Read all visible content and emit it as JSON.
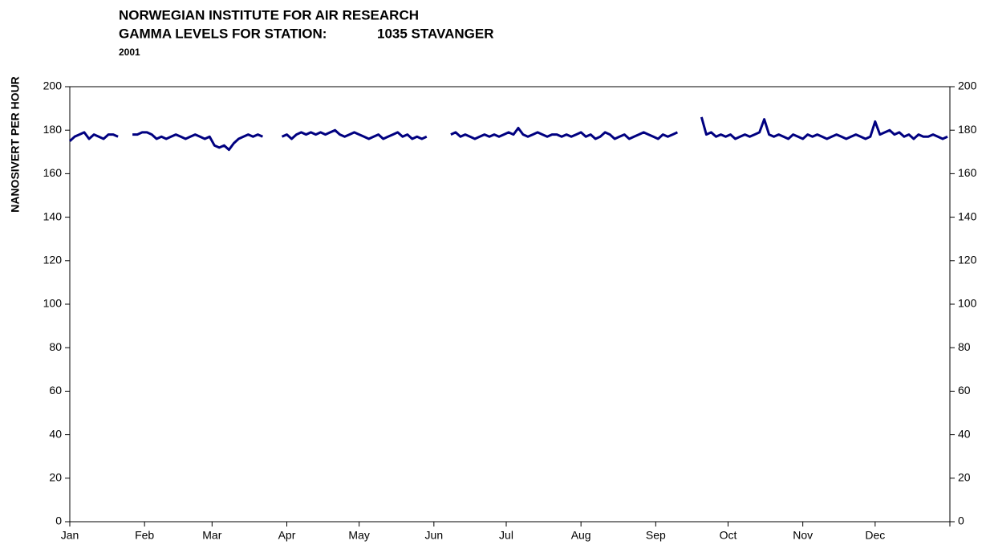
{
  "chart_data": {
    "type": "line",
    "title": "NORWEGIAN INSTITUTE FOR AIR RESEARCH",
    "station_label": "GAMMA LEVELS FOR STATION:",
    "station": "1035 STAVANGER",
    "subtitle": "2001",
    "y_label": "NANOSIVERT PER HOUR",
    "xlim": [
      0,
      365
    ],
    "xticks": [
      {
        "value": 0,
        "label": "Jan"
      },
      {
        "value": 31,
        "label": "Feb"
      },
      {
        "value": 59,
        "label": "Mar"
      },
      {
        "value": 90,
        "label": "Apr"
      },
      {
        "value": 120,
        "label": "May"
      },
      {
        "value": 151,
        "label": "Jun"
      },
      {
        "value": 181,
        "label": "Jul"
      },
      {
        "value": 212,
        "label": "Aug"
      },
      {
        "value": 243,
        "label": "Sep"
      },
      {
        "value": 273,
        "label": "Oct"
      },
      {
        "value": 304,
        "label": "Nov"
      },
      {
        "value": 334,
        "label": "Dec"
      },
      365
    ],
    "ylim": [
      0,
      200
    ],
    "yticks": [
      0,
      20,
      40,
      60,
      80,
      100,
      120,
      140,
      160,
      180,
      200
    ],
    "y2lim": [
      0,
      200
    ],
    "y2ticks": [
      0,
      20,
      40,
      60,
      80,
      100,
      120,
      140,
      160,
      180,
      200
    ],
    "x": [
      0,
      2,
      4,
      6,
      8,
      10,
      12,
      14,
      16,
      18,
      20,
      22,
      24,
      26,
      28,
      30,
      32,
      34,
      36,
      38,
      40,
      42,
      44,
      46,
      48,
      50,
      52,
      54,
      56,
      58,
      60,
      62,
      64,
      66,
      68,
      70,
      72,
      74,
      76,
      78,
      80,
      82,
      84,
      86,
      88,
      90,
      92,
      94,
      96,
      98,
      100,
      102,
      104,
      106,
      108,
      110,
      112,
      114,
      116,
      118,
      120,
      122,
      124,
      126,
      128,
      130,
      132,
      134,
      136,
      138,
      140,
      142,
      144,
      146,
      148,
      150,
      152,
      154,
      156,
      158,
      160,
      162,
      164,
      166,
      168,
      170,
      172,
      174,
      176,
      178,
      180,
      182,
      184,
      186,
      188,
      190,
      192,
      194,
      196,
      198,
      200,
      202,
      204,
      206,
      208,
      210,
      212,
      214,
      216,
      218,
      220,
      222,
      224,
      226,
      228,
      230,
      232,
      234,
      236,
      238,
      240,
      242,
      244,
      246,
      248,
      250,
      252,
      254,
      256,
      258,
      260,
      262,
      264,
      266,
      268,
      270,
      272,
      274,
      276,
      278,
      280,
      282,
      284,
      286,
      288,
      290,
      292,
      294,
      296,
      298,
      300,
      302,
      304,
      306,
      308,
      310,
      312,
      314,
      316,
      318,
      320,
      322,
      324,
      326,
      328,
      330,
      332,
      334,
      336,
      338,
      340,
      342,
      344,
      346,
      348,
      350,
      352,
      354,
      356,
      358,
      360,
      362,
      364
    ],
    "series": [
      {
        "color": "#000080",
        "values": [
          175,
          177,
          178,
          179,
          176,
          178,
          177,
          176,
          178,
          178,
          177,
          null,
          null,
          178,
          178,
          179,
          179,
          178,
          176,
          177,
          176,
          177,
          178,
          177,
          176,
          177,
          178,
          177,
          176,
          177,
          173,
          172,
          173,
          171,
          174,
          176,
          177,
          178,
          177,
          178,
          177,
          null,
          null,
          null,
          177,
          178,
          176,
          178,
          179,
          178,
          179,
          178,
          179,
          178,
          179,
          180,
          178,
          177,
          178,
          179,
          178,
          177,
          176,
          177,
          178,
          176,
          177,
          178,
          179,
          177,
          178,
          176,
          177,
          176,
          177,
          null,
          null,
          null,
          null,
          178,
          179,
          177,
          178,
          177,
          176,
          177,
          178,
          177,
          178,
          177,
          178,
          179,
          178,
          181,
          178,
          177,
          178,
          179,
          178,
          177,
          178,
          178,
          177,
          178,
          177,
          178,
          179,
          177,
          178,
          176,
          177,
          179,
          178,
          176,
          177,
          178,
          176,
          177,
          178,
          179,
          178,
          177,
          176,
          178,
          177,
          178,
          179,
          null,
          null,
          null,
          null,
          186,
          178,
          179,
          177,
          178,
          177,
          178,
          176,
          177,
          178,
          177,
          178,
          179,
          185,
          178,
          177,
          178,
          177,
          176,
          178,
          177,
          176,
          178,
          177,
          178,
          177,
          176,
          177,
          178,
          177,
          176,
          177,
          178,
          177,
          176,
          177,
          184,
          178,
          179,
          180,
          178,
          179,
          177,
          178,
          176,
          178,
          177,
          177,
          178,
          177,
          176,
          177
        ]
      }
    ]
  }
}
